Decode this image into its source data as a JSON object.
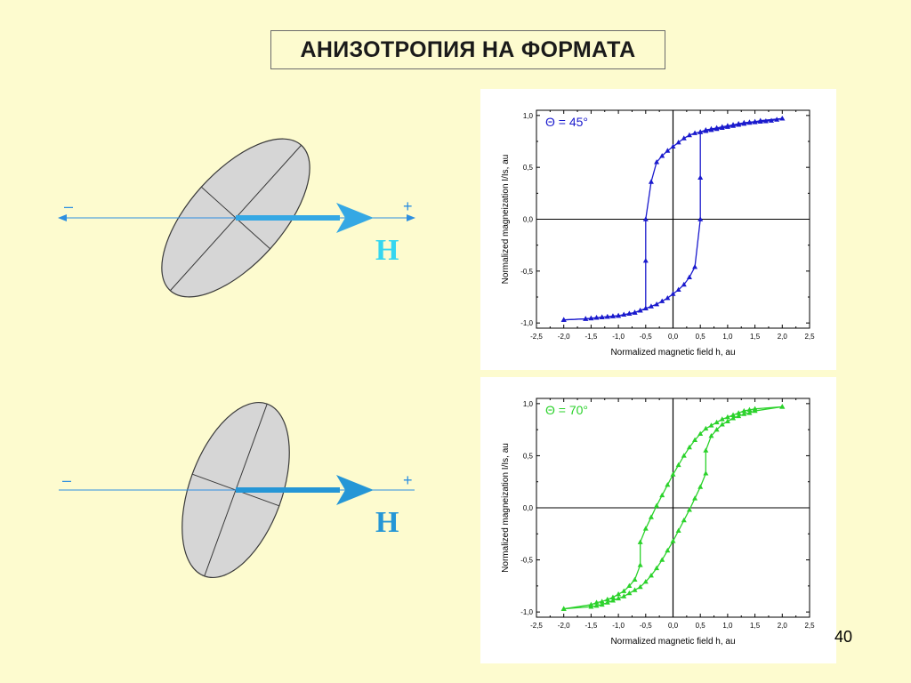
{
  "title": "АНИЗОТРОПИЯ НА ФОРМАТА",
  "page_number": "40",
  "diagrams": [
    {
      "minus_label": "–",
      "plus_label": "+",
      "field_label": "H",
      "field_color": "#35d6f0"
    },
    {
      "minus_label": "–",
      "plus_label": "+",
      "field_label": "H",
      "field_color": "#2596d6"
    }
  ],
  "chart_data": [
    {
      "type": "line",
      "annotation": "Θ = 45°",
      "color": "#1a1acd",
      "xlabel": "Normalized magnetic field h, au",
      "ylabel": "Normalized magneization I/Is, au",
      "xlim": [
        -2.5,
        2.5
      ],
      "ylim": [
        -1.05,
        1.05
      ],
      "x_ticks": [
        "-2,5",
        "-2,0",
        "-1,5",
        "-1,0",
        "-0,5",
        "0,0",
        "0,5",
        "1,0",
        "1,5",
        "2,0",
        "2,5"
      ],
      "y_ticks": [
        "1,0",
        "0,5",
        "0,0",
        "-0,5",
        "-1,0"
      ],
      "series": [
        {
          "x": [
            2.0,
            1.9,
            1.8,
            1.7,
            1.6,
            1.5,
            1.4,
            1.3,
            1.2,
            1.1,
            1.0,
            0.9,
            0.8,
            0.7,
            0.6,
            0.5,
            0.4,
            0.3,
            0.2,
            0.1,
            0.0,
            -0.1,
            -0.2,
            -0.3,
            -0.4,
            -0.5,
            -0.5,
            -0.5,
            -0.6,
            -0.7,
            -0.8,
            -0.9,
            -1.0,
            -1.1,
            -1.2,
            -1.3,
            -1.4,
            -1.5,
            -1.6,
            -2.0
          ],
          "y": [
            0.97,
            0.96,
            0.95,
            0.945,
            0.94,
            0.935,
            0.93,
            0.92,
            0.91,
            0.9,
            0.89,
            0.88,
            0.87,
            0.86,
            0.85,
            0.84,
            0.83,
            0.81,
            0.78,
            0.74,
            0.7,
            0.66,
            0.61,
            0.55,
            0.36,
            0.0,
            -0.4,
            -0.86,
            -0.88,
            -0.9,
            -0.91,
            -0.92,
            -0.93,
            -0.935,
            -0.94,
            -0.945,
            -0.95,
            -0.955,
            -0.96,
            -0.97
          ]
        },
        {
          "x": [
            -2.0,
            -1.6,
            -1.5,
            -1.4,
            -1.3,
            -1.2,
            -1.1,
            -1.0,
            -0.9,
            -0.8,
            -0.7,
            -0.6,
            -0.5,
            -0.4,
            -0.3,
            -0.2,
            -0.1,
            0.0,
            0.1,
            0.2,
            0.3,
            0.4,
            0.5,
            0.5,
            0.5,
            0.6,
            0.7,
            0.8,
            0.9,
            1.0,
            1.1,
            1.2,
            1.3,
            1.4,
            1.5,
            1.6,
            2.0
          ],
          "y": [
            -0.97,
            -0.96,
            -0.955,
            -0.95,
            -0.945,
            -0.94,
            -0.935,
            -0.93,
            -0.92,
            -0.91,
            -0.9,
            -0.88,
            -0.86,
            -0.84,
            -0.82,
            -0.79,
            -0.76,
            -0.72,
            -0.68,
            -0.63,
            -0.56,
            -0.46,
            0.0,
            0.4,
            0.84,
            0.86,
            0.87,
            0.88,
            0.89,
            0.9,
            0.91,
            0.92,
            0.93,
            0.935,
            0.94,
            0.95,
            0.97
          ]
        }
      ]
    },
    {
      "type": "line",
      "annotation": "Θ = 70°",
      "color": "#2bd22b",
      "xlabel": "Normalized magnetic field h, au",
      "ylabel": "Normalized magneization I/Is, au",
      "xlim": [
        -2.5,
        2.5
      ],
      "ylim": [
        -1.05,
        1.05
      ],
      "x_ticks": [
        "-2,5",
        "-2,0",
        "-1,5",
        "-1,0",
        "-0,5",
        "0,0",
        "0,5",
        "1,0",
        "1,5",
        "2,0",
        "2,5"
      ],
      "y_ticks": [
        "1,0",
        "0,5",
        "0,0",
        "-0,5",
        "-1,0"
      ],
      "series": [
        {
          "x": [
            2.0,
            1.5,
            1.4,
            1.3,
            1.2,
            1.1,
            1.0,
            0.9,
            0.8,
            0.7,
            0.6,
            0.5,
            0.4,
            0.3,
            0.2,
            0.1,
            0.0,
            -0.1,
            -0.2,
            -0.3,
            -0.4,
            -0.5,
            -0.6,
            -0.6,
            -0.7,
            -0.8,
            -0.9,
            -1.0,
            -1.1,
            -1.2,
            -1.3,
            -1.4,
            -1.5,
            -2.0
          ],
          "y": [
            0.97,
            0.95,
            0.94,
            0.93,
            0.91,
            0.89,
            0.87,
            0.85,
            0.82,
            0.79,
            0.76,
            0.71,
            0.65,
            0.58,
            0.5,
            0.41,
            0.32,
            0.22,
            0.12,
            0.02,
            -0.09,
            -0.2,
            -0.33,
            -0.55,
            -0.69,
            -0.75,
            -0.8,
            -0.83,
            -0.86,
            -0.88,
            -0.9,
            -0.91,
            -0.93,
            -0.97
          ]
        },
        {
          "x": [
            -2.0,
            -1.5,
            -1.4,
            -1.3,
            -1.2,
            -1.1,
            -1.0,
            -0.9,
            -0.8,
            -0.7,
            -0.6,
            -0.5,
            -0.4,
            -0.3,
            -0.2,
            -0.1,
            0.0,
            0.1,
            0.2,
            0.3,
            0.4,
            0.5,
            0.6,
            0.6,
            0.7,
            0.8,
            0.9,
            1.0,
            1.1,
            1.2,
            1.3,
            1.4,
            1.5,
            2.0
          ],
          "y": [
            -0.97,
            -0.95,
            -0.94,
            -0.93,
            -0.91,
            -0.89,
            -0.87,
            -0.85,
            -0.82,
            -0.79,
            -0.76,
            -0.71,
            -0.65,
            -0.58,
            -0.5,
            -0.41,
            -0.32,
            -0.22,
            -0.12,
            -0.02,
            0.09,
            0.2,
            0.33,
            0.55,
            0.69,
            0.75,
            0.8,
            0.83,
            0.86,
            0.88,
            0.9,
            0.91,
            0.93,
            0.97
          ]
        }
      ]
    }
  ]
}
